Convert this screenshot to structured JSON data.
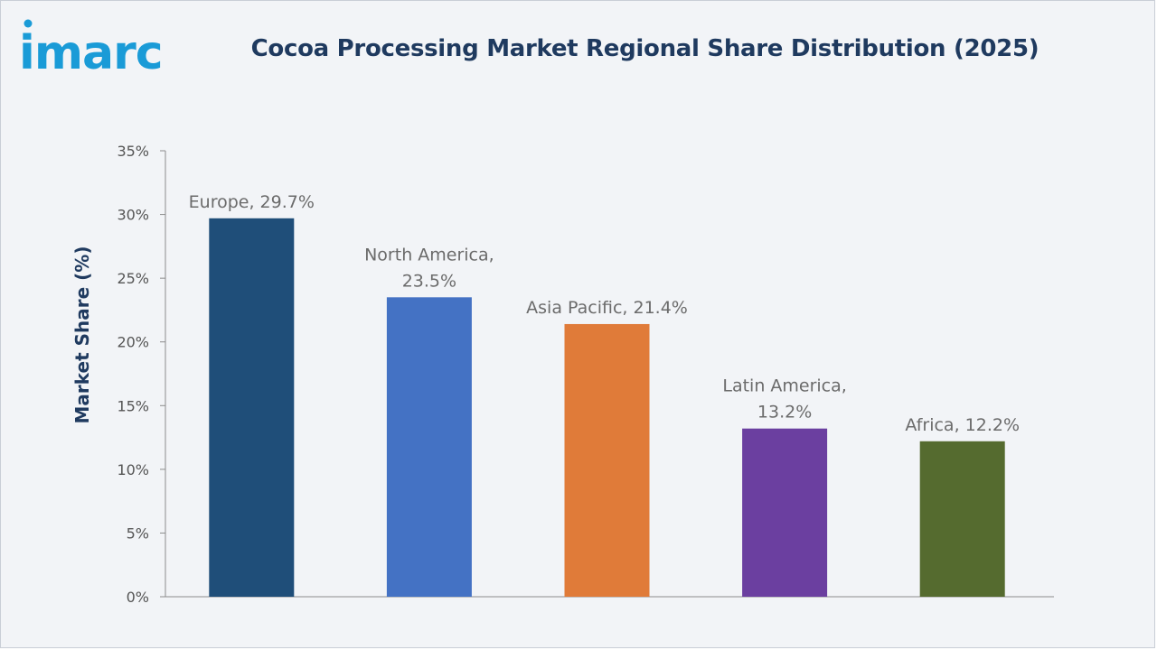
{
  "header": {
    "logo_text": "imarc",
    "title": "Cocoa Processing Market Regional Share Distribution (2025)"
  },
  "colors": {
    "logo": "#1a9bd7",
    "title": "#1f3a5f",
    "axis": "#8c8c8c"
  },
  "chart_data": {
    "type": "bar",
    "title": "Cocoa Processing Market Regional Share Distribution (2025)",
    "xlabel": "",
    "ylabel": "Market Share (%)",
    "ylim": [
      0,
      35
    ],
    "yticks": [
      0,
      5,
      10,
      15,
      20,
      25,
      30,
      35
    ],
    "ytick_labels": [
      "0%",
      "5%",
      "10%",
      "15%",
      "20%",
      "25%",
      "30%",
      "35%"
    ],
    "grid": false,
    "legend": "none",
    "categories": [
      "Europe",
      "North America",
      "Asia Pacific",
      "Latin America",
      "Africa"
    ],
    "values": [
      29.7,
      23.5,
      21.4,
      13.2,
      12.2
    ],
    "data_labels": [
      [
        "Europe, 29.7%"
      ],
      [
        "North America,",
        "23.5%"
      ],
      [
        "Asia Pacific, 21.4%"
      ],
      [
        "Latin America,",
        "13.2%"
      ],
      [
        "Africa, 12.2%"
      ]
    ],
    "bar_colors": [
      "#1f4e79",
      "#4472c4",
      "#e07b39",
      "#6b3fa0",
      "#556b2f"
    ]
  }
}
